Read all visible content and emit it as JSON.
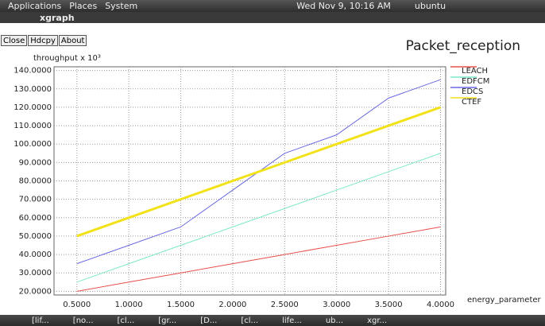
{
  "panel": {
    "menus": [
      "Applications",
      "Places",
      "System"
    ],
    "clock": "Wed Nov  9, 10:16 AM",
    "user": "ubuntu"
  },
  "window": {
    "title": "xgraph",
    "buttons": [
      "Close",
      "Hdcpy",
      "About"
    ]
  },
  "taskbar": {
    "items": [
      "[lif...",
      "[no...",
      "[cl...",
      "[gr...",
      "[D...",
      "[cl...",
      "life...",
      "ub...",
      "xgr..."
    ]
  },
  "chart_data": {
    "type": "line",
    "title": "Packet_reception",
    "y_label": "throughput x 10³",
    "x_label": "energy_parameter",
    "x": [
      0.5,
      1.0,
      1.5,
      2.0,
      2.5,
      3.0,
      3.5,
      4.0
    ],
    "series": [
      {
        "name": "LEACH",
        "color": "#e8504a",
        "values": [
          20,
          25,
          30,
          35,
          40,
          45,
          50,
          55
        ]
      },
      {
        "name": "EDFCM",
        "color": "#7de8c8",
        "values": [
          25,
          35,
          45,
          55,
          65,
          75,
          85,
          95
        ]
      },
      {
        "name": "EDCS",
        "color": "#6a6ae0",
        "values": [
          35,
          45,
          55,
          75,
          95,
          105,
          125,
          135
        ]
      },
      {
        "name": "CTEF",
        "color": "#f2e21a",
        "values": [
          50,
          60,
          70,
          80,
          90,
          100,
          110,
          120
        ]
      }
    ],
    "xlim": [
      0.28,
      4.05
    ],
    "ylim": [
      18,
      142
    ],
    "xticks": [
      {
        "value": 0.5,
        "label": "0.5000"
      },
      {
        "value": 1.0,
        "label": "1.0000"
      },
      {
        "value": 1.5,
        "label": "1.5000"
      },
      {
        "value": 2.0,
        "label": "2.0000"
      },
      {
        "value": 2.5,
        "label": "2.5000"
      },
      {
        "value": 3.0,
        "label": "3.0000"
      },
      {
        "value": 3.5,
        "label": "3.5000"
      },
      {
        "value": 4.0,
        "label": "4.0000"
      }
    ],
    "yticks": [
      {
        "value": 20,
        "label": "20.0000"
      },
      {
        "value": 30,
        "label": "30.0000"
      },
      {
        "value": 40,
        "label": "40.0000"
      },
      {
        "value": 50,
        "label": "50.0000"
      },
      {
        "value": 60,
        "label": "60.0000"
      },
      {
        "value": 70,
        "label": "70.0000"
      },
      {
        "value": 80,
        "label": "80.0000"
      },
      {
        "value": 90,
        "label": "90.0000"
      },
      {
        "value": 100,
        "label": "100.0000"
      },
      {
        "value": 110,
        "label": "110.0000"
      },
      {
        "value": 120,
        "label": "120.0000"
      },
      {
        "value": 130,
        "label": "130.0000"
      },
      {
        "value": 140,
        "label": "140.0000"
      }
    ],
    "grid": true
  }
}
